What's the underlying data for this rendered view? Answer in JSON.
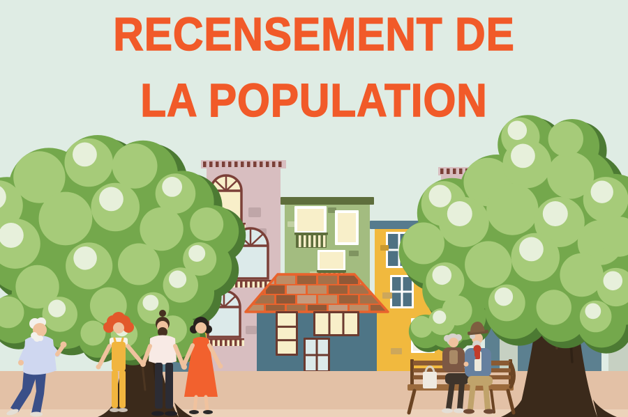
{
  "title": {
    "line1": "RECENSEMENT DE",
    "line2": "LA POPULATION"
  },
  "scene": {
    "description": "Flat-style illustration of a village square: colorful row houses, two large leafy trees, a family of three holding hands, a red-haired woman in yellow overalls, an elderly man waving beside a tree trunk, and an elderly couple seated on a wooden bench with a tote bag",
    "elements": [
      "building-pink-left",
      "building-pink-right",
      "building-green-balconies",
      "building-yellow-left",
      "building-yellow-right",
      "house-brick-roof",
      "building-teal-right",
      "tree-left",
      "tree-right",
      "family-holding-hands",
      "old-man-waving",
      "elderly-couple-on-bench",
      "bench",
      "tote-bag",
      "planter-wall",
      "ground"
    ]
  },
  "palette": {
    "mint": "#DFECE4",
    "titleOrange": "#F15A29",
    "ground": "#E3C1A6",
    "groundLight": "#ECD2BA",
    "yellow": "#F1B93E",
    "roofSteel": "#567B8E",
    "windowSteel": "#4E7183",
    "white": "#FFFFFF",
    "pink": "#D8BEC0",
    "pinkPatchA": "#BFA6A8",
    "pinkPatchB": "#CBB3AE",
    "maroon": "#7B4038",
    "creamPane": "#F8EFC9",
    "bluePane": "#DCEAEA",
    "green": "#A3BC80",
    "greenRoof": "#5E6E3C",
    "greenLight": "#C3D2A4",
    "greenDark": "#7F9460",
    "tealHouse": "#4E7586",
    "brickOrange": "#E8632D",
    "brick1": "#8F5837",
    "brick2": "#BD8D66",
    "brick3": "#A4714A",
    "brick4": "#C59A7E",
    "brick5": "#99603A",
    "tealBuilding": "#5C8090",
    "sage": "#C6D0C2",
    "mustardPatch": "#C9992F",
    "tanPatch": "#CDA75B",
    "doorFrame": "#6B3A2F",
    "foliageDark": "#4C7A33",
    "foliageBase": "#74A84C",
    "foliageLight": "#A6CB79",
    "foliagePale": "#E7F0DB",
    "trunk": "#3B2A1B",
    "trunkLight": "#5A4129",
    "skin": "#F0C29E",
    "hairWhite": "#F3F1EC",
    "oldManShirt": "#CFD7F0",
    "jeans": "#3A4F88",
    "shoeLight": "#E4DFD6",
    "hairRed": "#E2582B",
    "overalls": "#F1B53F",
    "topWhite": "#F7F3EA",
    "hairBrown": "#463121",
    "teePink": "#F8EAE5",
    "pantsBlack": "#2C2C34",
    "dressOrange": "#F2612E",
    "hairBlack": "#28211E",
    "benchWood": "#8A5A33",
    "benchSeat": "#9C6B3D",
    "benchDark": "#6B4423",
    "hairGray": "#D8D2CC",
    "cardigan": "#7C5844",
    "vestTan": "#A98A66",
    "elderPants": "#3E342B",
    "hatBrown": "#7E5E40",
    "hatBrim": "#6E5138",
    "scarfRed": "#C23B2A",
    "coatBlue": "#66809F",
    "shirtCream": "#EFE9DA",
    "pantsTan": "#C0A36B",
    "shoeBrown": "#6E4A33",
    "tote": "#EFEAE0"
  }
}
